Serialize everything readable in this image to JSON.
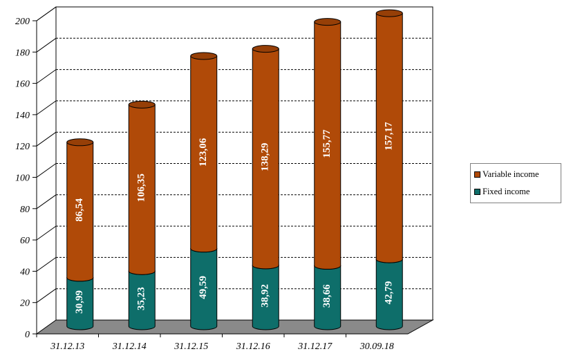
{
  "chart_data": {
    "type": "bar",
    "stacked": true,
    "style": "3d-cylinder",
    "categories": [
      "31.12.13",
      "31.12.14",
      "31.12.15",
      "31.12.16",
      "31.12.17",
      "30.09.18"
    ],
    "series": [
      {
        "name": "Fixed income",
        "color": "#0e6e6a",
        "values": [
          30.99,
          35.23,
          49.59,
          38.92,
          38.66,
          42.79
        ],
        "labels": [
          "30,99",
          "35,23",
          "49,59",
          "38,92",
          "38,66",
          "42,79"
        ]
      },
      {
        "name": "Variable income",
        "color": "#b04a08",
        "values": [
          86.54,
          106.35,
          123.06,
          138.29,
          155.77,
          157.17
        ],
        "labels": [
          "86,54",
          "106,35",
          "123,06",
          "138,29",
          "155,77",
          "157,17"
        ]
      }
    ],
    "yticks": [
      "0",
      "20",
      "40",
      "60",
      "80",
      "100",
      "120",
      "140",
      "160",
      "180",
      "200"
    ],
    "ylim": [
      0,
      200
    ],
    "grid": true,
    "legend_position": "right"
  }
}
